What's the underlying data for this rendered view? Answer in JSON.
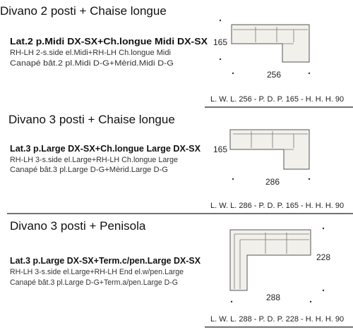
{
  "sections": [
    {
      "title": "Divano 2 posti + Chaise longue",
      "code": "Lat.2 p.Midi DX-SX+Ch.longue Midi DX-SX",
      "lines": [
        "RH-LH 2-s.side el.Midi+RH-LH Ch.longue Midi",
        "Canapé bât.2 pl.Midi D-G+Mèrid.Midi D-G"
      ],
      "depth": "165",
      "width": "256",
      "spec": "L. W. L. 256 - P. D. P. 165 - H. H. H. 90"
    },
    {
      "title": "Divano 3 posti + Chaise longue",
      "code": "Lat.3 p.Large DX-SX+Ch.longue Large DX-SX",
      "lines": [
        "RH-LH 3-s.side el.Large+RH-LH Ch.longue Large",
        "Canapé bât.3 pl.Large D-G+Mèrid.Large D-G"
      ],
      "depth": "165",
      "width": "286",
      "spec": "L. W. L. 286 - P. D. P. 165 - H. H. H. 90"
    },
    {
      "title": "Divano 3 posti + Penisola",
      "code": "Lat.3 p.Large DX-SX+Term.c/pen.Large DX-SX",
      "lines": [
        "RH-LH 3-s.side el.Large+RH-LH End el.w/pen.Large",
        "Canapé bât.3 pl.Large D-G+Term.a/pen.Large D-G"
      ],
      "depth": "228",
      "width": "288",
      "spec": "L. W. L. 288 - P. D. P. 228 - H. H. H. 90"
    }
  ]
}
